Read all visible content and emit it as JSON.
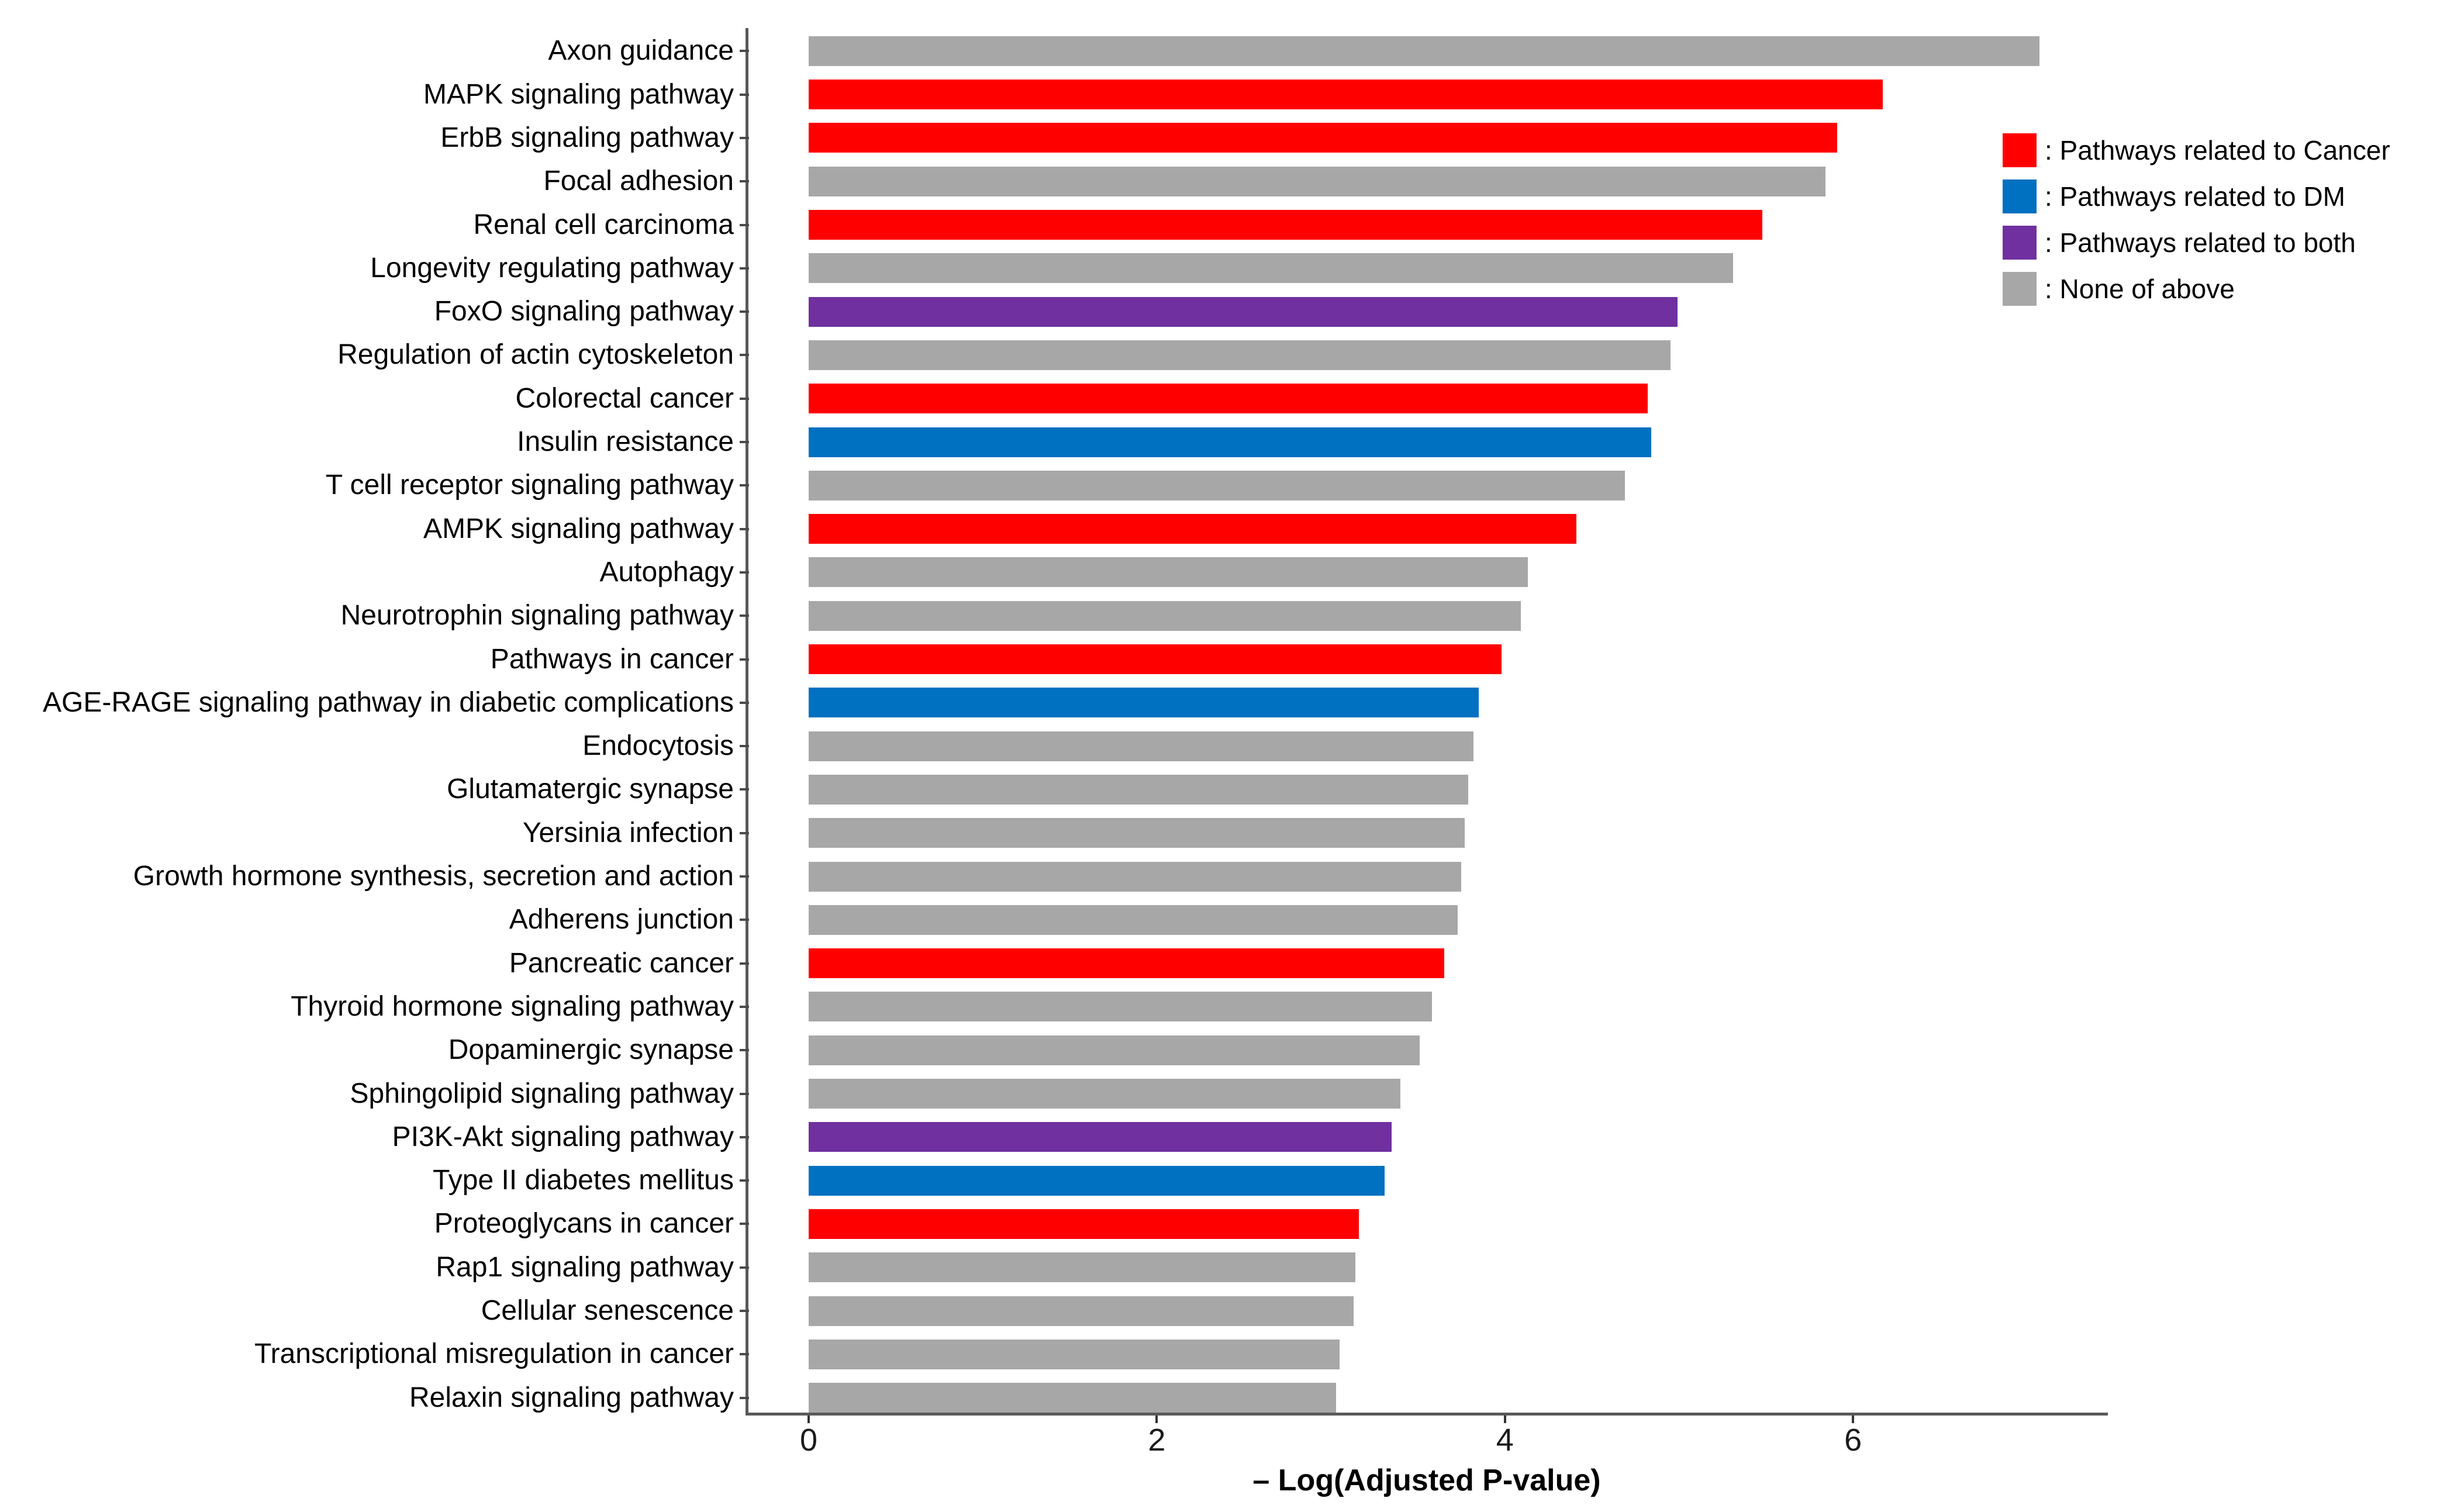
{
  "chart_data": {
    "type": "bar",
    "orientation": "horizontal",
    "title": "",
    "xlabel": "– Log(Adjusted P-value)",
    "ylabel": "",
    "x_ticks": [
      0,
      2,
      4,
      6
    ],
    "xlim": [
      0,
      7.5
    ],
    "grid": false,
    "legend_position": "top-right",
    "categories": [
      "Axon guidance",
      "MAPK signaling pathway",
      "ErbB signaling pathway",
      "Focal adhesion",
      "Renal cell carcinoma",
      "Longevity regulating pathway",
      "FoxO signaling pathway",
      "Regulation of actin cytoskeleton",
      "Colorectal cancer",
      "Insulin resistance",
      "T cell receptor signaling pathway",
      "AMPK signaling pathway",
      "Autophagy",
      "Neurotrophin signaling pathway",
      "Pathways in cancer",
      "AGE-RAGE signaling pathway in diabetic complications",
      "Endocytosis",
      "Glutamatergic synapse",
      "Yersinia infection",
      "Growth hormone synthesis, secretion and action",
      "Adherens junction",
      "Pancreatic cancer",
      "Thyroid hormone signaling pathway",
      "Dopaminergic synapse",
      "Sphingolipid signaling pathway",
      "PI3K-Akt signaling pathway",
      "Type II diabetes mellitus",
      "Proteoglycans in cancer",
      "Rap1 signaling pathway",
      "Cellular senescence",
      "Transcriptional misregulation in cancer",
      "Relaxin signaling pathway"
    ],
    "values": [
      7.07,
      6.17,
      5.91,
      5.84,
      5.48,
      5.31,
      4.99,
      4.95,
      4.82,
      4.84,
      4.69,
      4.41,
      4.13,
      4.09,
      3.98,
      3.85,
      3.82,
      3.79,
      3.77,
      3.75,
      3.73,
      3.65,
      3.58,
      3.51,
      3.4,
      3.35,
      3.31,
      3.16,
      3.14,
      3.13,
      3.05,
      3.03
    ],
    "groups": [
      "none",
      "cancer",
      "cancer",
      "none",
      "cancer",
      "none",
      "both",
      "none",
      "cancer",
      "dm",
      "none",
      "cancer",
      "none",
      "none",
      "cancer",
      "dm",
      "none",
      "none",
      "none",
      "none",
      "none",
      "cancer",
      "none",
      "none",
      "none",
      "both",
      "dm",
      "cancer",
      "none",
      "none",
      "none",
      "none"
    ],
    "colors": {
      "cancer": "#FE0000",
      "dm": "#0070C0",
      "both": "#7030A0",
      "none": "#A7A7A7"
    },
    "legend": [
      {
        "key": "cancer",
        "label": ": Pathways related to Cancer"
      },
      {
        "key": "dm",
        "label": ": Pathways related to DM"
      },
      {
        "key": "both",
        "label": ": Pathways related to both"
      },
      {
        "key": "none",
        "label": ": None of above"
      }
    ]
  }
}
